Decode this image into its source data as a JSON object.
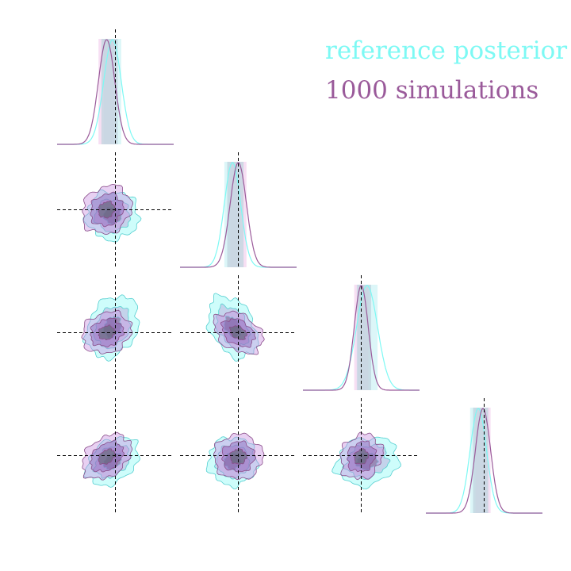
{
  "chart_data": {
    "type": "corner",
    "n_params": 4,
    "truth": [
      0.0,
      0.0,
      0.0,
      0.0
    ],
    "axis_range": [
      -1.0,
      1.0
    ],
    "series": [
      {
        "name": "reference posterior",
        "color": "#7df9f4",
        "means": [
          -0.05,
          -0.1,
          0.1,
          -0.1
        ],
        "sds": [
          0.15,
          0.14,
          0.18,
          0.14
        ],
        "correlations": {
          "0-1": 0.0,
          "0-2": 0.25,
          "1-2": -0.35,
          "0-3": 0.35,
          "1-3": 0.0,
          "2-3": 0.15
        }
      },
      {
        "name": "1000 simulations",
        "color": "#9a5a9a",
        "means": [
          -0.15,
          0.0,
          0.0,
          -0.02
        ],
        "sds": [
          0.14,
          0.14,
          0.12,
          0.13
        ],
        "correlations": {
          "0-1": 0.15,
          "0-2": 0.15,
          "1-2": -0.35,
          "0-3": 0.35,
          "1-3": 0.0,
          "2-3": 0.15
        }
      }
    ],
    "xlabel": "",
    "ylabel": "",
    "grid": false,
    "legend_position": "top-right",
    "contour_levels": [
      "68%",
      "95%",
      "99%"
    ]
  }
}
